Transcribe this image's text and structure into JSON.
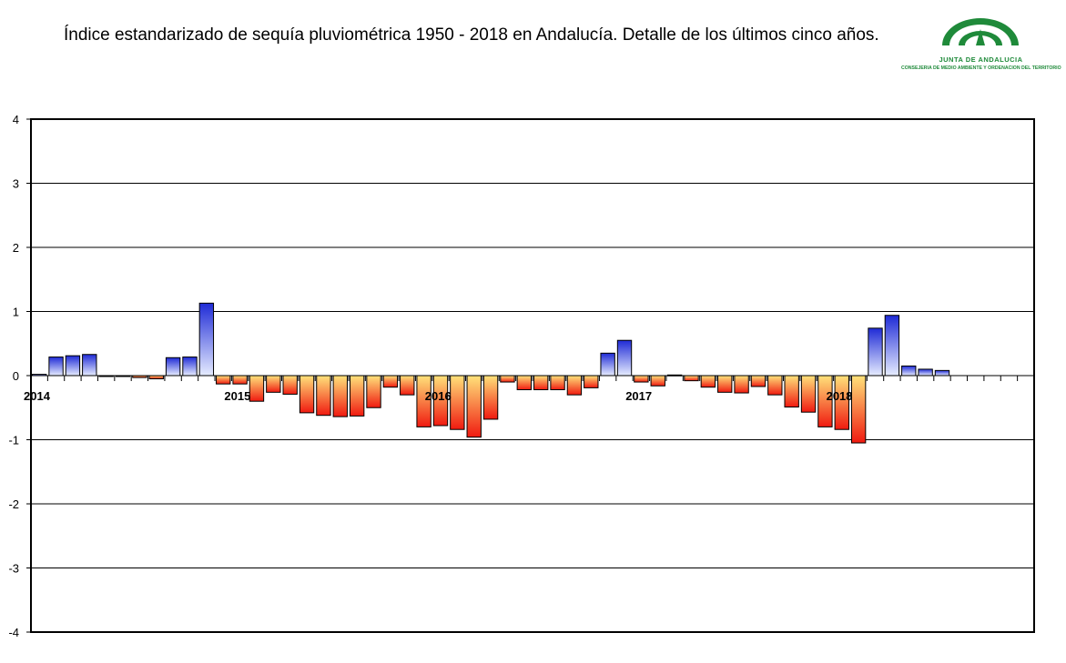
{
  "title": "Índice estandarizado de sequía pluviométrica 1950 - 2018 en Andalucía. Detalle de los últimos cinco años.",
  "logo": {
    "name": "JUNTA DE ANDALUCIA",
    "subtitle": "CONSEJERIA DE MEDIO AMBIENTE Y ORDENACION DEL TERRITORIO",
    "color": "#1f8a3a"
  },
  "chart_data": {
    "type": "bar",
    "title": "Índice estandarizado de sequía pluviométrica 1950 - 2018 en Andalucía. Detalle de los últimos cinco años.",
    "xlabel": "",
    "ylabel": "",
    "ylim": [
      -4,
      4
    ],
    "yticks": [
      "4",
      "3",
      "2",
      "1",
      "0",
      "-1",
      "-2",
      "-3",
      "-4"
    ],
    "grid": true,
    "year_labels": [
      {
        "label": "2014",
        "index": 0
      },
      {
        "label": "2015",
        "index": 12
      },
      {
        "label": "2016",
        "index": 24
      },
      {
        "label": "2017",
        "index": 36
      },
      {
        "label": "2018",
        "index": 48
      }
    ],
    "slots": 60,
    "values": [
      0.02,
      0.29,
      0.31,
      0.33,
      -0.01,
      -0.01,
      -0.03,
      -0.05,
      0.28,
      0.29,
      1.13,
      -0.13,
      -0.13,
      -0.4,
      -0.26,
      -0.29,
      -0.58,
      -0.62,
      -0.64,
      -0.63,
      -0.5,
      -0.18,
      -0.3,
      -0.8,
      -0.78,
      -0.84,
      -0.96,
      -0.68,
      -0.1,
      -0.22,
      -0.22,
      -0.22,
      -0.3,
      -0.19,
      0.35,
      0.55,
      -0.1,
      -0.16,
      0.01,
      -0.08,
      -0.18,
      -0.26,
      -0.27,
      -0.17,
      -0.3,
      -0.49,
      -0.57,
      -0.8,
      -0.84,
      -1.05,
      0.74,
      0.94,
      0.15,
      0.1,
      0.08
    ],
    "colors": {
      "positive_top": "#1f2bd6",
      "positive_bottom": "#e6ecff",
      "negative_top": "#ffe27a",
      "negative_bottom": "#f01a10"
    }
  }
}
